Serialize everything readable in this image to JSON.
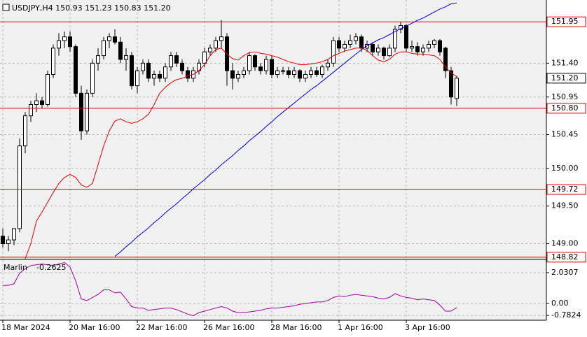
{
  "chart_data": [
    {
      "type": "candlestick",
      "title": "USDJPY,H4  150.93 151.23 150.83 151.20",
      "categories": [
        "18 Mar 2024",
        null,
        null,
        null,
        null,
        null,
        null,
        null,
        null,
        null,
        null,
        null,
        "20 Mar 16:00",
        null,
        null,
        null,
        null,
        null,
        null,
        null,
        null,
        null,
        null,
        null,
        "22 Mar 16:00",
        null,
        null,
        null,
        null,
        null,
        null,
        null,
        null,
        null,
        null,
        null,
        "26 Mar 16:00",
        null,
        null,
        null,
        null,
        null,
        null,
        null,
        null,
        null,
        null,
        null,
        "28 Mar 16:00",
        null,
        null,
        null,
        null,
        null,
        null,
        null,
        null,
        null,
        null,
        null,
        "1 Apr 16:00",
        null,
        null,
        null,
        null,
        null,
        null,
        null,
        null,
        null,
        null,
        null,
        "3 Apr 16:00",
        null,
        null,
        null,
        null,
        null,
        null,
        null,
        null,
        null
      ],
      "open": [
        149.1,
        149.0,
        149.05,
        149.2,
        150.3,
        150.7,
        150.85,
        150.9,
        150.85,
        151.25,
        151.6,
        151.7,
        151.75,
        151.62,
        151.0,
        150.5,
        151.0,
        151.4,
        151.5,
        151.7,
        151.75,
        151.68,
        151.45,
        151.5,
        151.1,
        151.3,
        151.4,
        151.2,
        151.25,
        151.2,
        151.35,
        151.5,
        151.4,
        151.3,
        151.2,
        151.3,
        151.4,
        151.55,
        151.6,
        151.7,
        151.75,
        151.3,
        151.2,
        151.25,
        151.3,
        151.5,
        151.35,
        151.3,
        151.45,
        151.25,
        151.3,
        151.3,
        151.25,
        151.3,
        151.2,
        151.25,
        151.3,
        151.25,
        151.35,
        151.4,
        151.7,
        151.6,
        151.65,
        151.7,
        151.75,
        151.6,
        151.65,
        151.55,
        151.6,
        151.5,
        151.6,
        151.85,
        151.9,
        151.6,
        151.62,
        151.55,
        151.6,
        151.65,
        151.7,
        151.6,
        151.3,
        150.93
      ],
      "high": [
        149.2,
        149.1,
        149.2,
        150.4,
        150.75,
        150.9,
        151.0,
        150.95,
        151.3,
        151.65,
        151.8,
        151.82,
        151.82,
        151.65,
        151.1,
        151.05,
        151.45,
        151.6,
        151.75,
        151.8,
        151.85,
        151.75,
        151.6,
        151.55,
        151.35,
        151.45,
        151.45,
        151.3,
        151.3,
        151.4,
        151.55,
        151.55,
        151.45,
        151.35,
        151.35,
        151.45,
        151.6,
        151.65,
        151.75,
        151.97,
        151.8,
        151.4,
        151.3,
        151.35,
        151.55,
        151.52,
        151.4,
        151.5,
        151.5,
        151.35,
        151.35,
        151.35,
        151.35,
        151.32,
        151.3,
        151.35,
        151.35,
        151.38,
        151.45,
        151.75,
        151.75,
        151.7,
        151.78,
        151.8,
        151.78,
        151.7,
        151.68,
        151.65,
        151.62,
        151.65,
        151.9,
        151.95,
        151.92,
        151.7,
        151.68,
        151.65,
        151.7,
        151.72,
        151.72,
        151.62,
        151.35,
        151.23
      ],
      "low": [
        148.95,
        148.9,
        148.98,
        149.15,
        150.2,
        150.62,
        150.75,
        150.8,
        150.82,
        151.2,
        151.5,
        151.6,
        151.55,
        150.95,
        150.38,
        150.45,
        150.95,
        151.3,
        151.45,
        151.6,
        151.65,
        151.4,
        151.3,
        151.05,
        151.0,
        151.25,
        151.15,
        151.1,
        151.15,
        151.15,
        151.3,
        151.35,
        151.25,
        151.15,
        151.15,
        151.25,
        151.35,
        151.5,
        151.55,
        151.6,
        151.1,
        151.05,
        151.15,
        151.2,
        151.25,
        151.3,
        151.25,
        151.25,
        151.2,
        151.2,
        151.25,
        151.2,
        151.2,
        151.15,
        151.15,
        151.2,
        151.22,
        151.2,
        151.3,
        151.35,
        151.55,
        151.55,
        151.6,
        151.65,
        151.55,
        151.55,
        151.5,
        151.5,
        151.45,
        151.48,
        151.55,
        151.8,
        151.55,
        151.55,
        151.5,
        151.5,
        151.55,
        151.6,
        151.5,
        151.2,
        150.85,
        150.83
      ],
      "close": [
        149.0,
        149.05,
        149.2,
        150.3,
        150.7,
        150.85,
        150.9,
        150.85,
        151.25,
        151.6,
        151.7,
        151.75,
        151.62,
        151.0,
        150.5,
        151.0,
        151.4,
        151.5,
        151.7,
        151.75,
        151.68,
        151.45,
        151.5,
        151.1,
        151.3,
        151.4,
        151.2,
        151.25,
        151.2,
        151.35,
        151.5,
        151.4,
        151.3,
        151.2,
        151.3,
        151.4,
        151.55,
        151.6,
        151.7,
        151.75,
        151.3,
        151.2,
        151.25,
        151.3,
        151.5,
        151.35,
        151.3,
        151.45,
        151.25,
        151.3,
        151.3,
        151.25,
        151.3,
        151.2,
        151.25,
        151.3,
        151.25,
        151.35,
        151.4,
        151.7,
        151.6,
        151.65,
        151.7,
        151.75,
        151.6,
        151.65,
        151.55,
        151.6,
        151.5,
        151.6,
        151.85,
        151.9,
        151.6,
        151.62,
        151.55,
        151.6,
        151.65,
        151.7,
        151.55,
        151.3,
        150.95,
        151.2
      ],
      "series": [
        {
          "color": "#e00000",
          "values": [
            null,
            null,
            null,
            null,
            148.8,
            149.0,
            149.3,
            149.42,
            149.55,
            149.68,
            149.8,
            149.88,
            149.92,
            149.88,
            149.78,
            149.75,
            149.8,
            150.05,
            150.3,
            150.5,
            150.63,
            150.66,
            150.62,
            150.6,
            150.62,
            150.66,
            150.72,
            150.85,
            151.0,
            151.08,
            151.14,
            151.18,
            151.2,
            151.23,
            151.25,
            151.3,
            151.38,
            151.5,
            151.58,
            151.6,
            151.52,
            151.46,
            151.44,
            151.5,
            151.54,
            151.55,
            151.53,
            151.52,
            151.5,
            151.48,
            151.45,
            151.42,
            151.4,
            151.38,
            151.38,
            151.39,
            151.4,
            151.42,
            151.45,
            151.5,
            151.53,
            151.56,
            151.58,
            151.6,
            151.6,
            151.57,
            151.5,
            151.44,
            151.42,
            151.45,
            151.52,
            151.55,
            151.55,
            151.53,
            151.52,
            151.52,
            151.51,
            151.5,
            151.45,
            151.35,
            151.27,
            151.22
          ]
        },
        {
          "color": "#0000dd",
          "values": [
            null,
            null,
            null,
            null,
            null,
            null,
            null,
            null,
            null,
            null,
            null,
            null,
            null,
            null,
            null,
            null,
            null,
            null,
            null,
            null,
            148.83,
            148.89,
            148.96,
            149.02,
            149.09,
            149.15,
            149.21,
            149.28,
            149.34,
            149.41,
            149.47,
            149.53,
            149.6,
            149.66,
            149.73,
            149.79,
            149.85,
            149.92,
            149.98,
            150.05,
            150.11,
            150.17,
            150.24,
            150.3,
            150.37,
            150.43,
            150.49,
            150.56,
            150.62,
            150.69,
            150.75,
            150.81,
            150.87,
            150.93,
            150.99,
            151.05,
            151.1,
            151.16,
            151.22,
            151.28,
            151.34,
            151.4,
            151.46,
            151.52,
            151.58,
            151.63,
            151.67,
            151.71,
            151.74,
            151.78,
            151.82,
            151.86,
            151.89,
            151.93,
            151.97,
            152.0,
            152.04,
            152.08,
            152.12,
            152.15,
            152.19,
            152.2
          ]
        }
      ],
      "levels": [
        151.95,
        {
          "value": 150.8,
          "label": "150.80"
        },
        149.72,
        148.82
      ],
      "level_color": "#e00000",
      "last_price": {
        "value": 151.2,
        "label": "151.20"
      },
      "ylim": [
        148.8,
        152.24
      ],
      "yticks": [
        {
          "value": 151.4,
          "label": "151.40"
        },
        150.95,
        150.45,
        {
          "value": 150.0,
          "label": "150.00"
        },
        {
          "value": 149.5,
          "label": "149.50"
        },
        {
          "value": 149.0,
          "label": "149.00"
        }
      ],
      "grid": true
    },
    {
      "type": "line",
      "series": [
        {
          "name": "Marlin",
          "color": "#a000a0",
          "values": [
            1.2,
            1.2,
            1.3,
            2.0,
            2.3,
            2.5,
            2.55,
            2.6,
            2.55,
            2.5,
            2.6,
            2.7,
            2.4,
            1.5,
            0.3,
            0.2,
            0.4,
            0.6,
            0.9,
            0.9,
            0.7,
            0.75,
            0.3,
            -0.2,
            -0.3,
            -0.3,
            -0.45,
            -0.4,
            -0.35,
            -0.3,
            -0.3,
            -0.4,
            -0.55,
            -0.7,
            -0.8,
            -0.6,
            -0.5,
            -0.4,
            -0.3,
            -0.2,
            -0.3,
            -0.5,
            -0.6,
            -0.6,
            -0.55,
            -0.5,
            -0.45,
            -0.35,
            -0.3,
            -0.3,
            -0.25,
            -0.2,
            -0.15,
            -0.05,
            0.0,
            0.05,
            0.1,
            0.1,
            0.2,
            0.4,
            0.5,
            0.45,
            0.55,
            0.6,
            0.55,
            0.5,
            0.45,
            0.35,
            0.3,
            0.4,
            0.65,
            0.5,
            0.4,
            0.35,
            0.25,
            0.3,
            0.25,
            0.2,
            -0.1,
            -0.5,
            -0.5,
            -0.2625
          ]
        }
      ],
      "ylim": [
        -1.1,
        2.86
      ],
      "yticks": [
        2.0307,
        {
          "value": 0,
          "label": "0.00"
        },
        -0.7824
      ],
      "grid": true
    }
  ]
}
